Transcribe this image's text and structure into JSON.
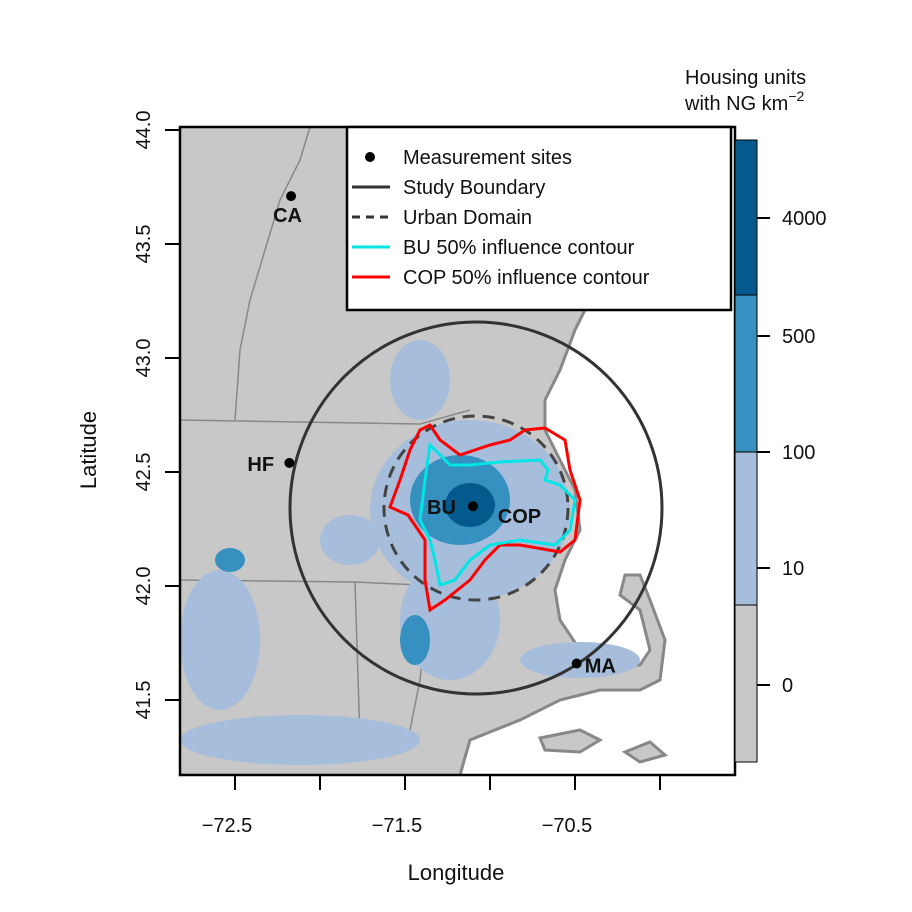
{
  "chart_data": {
    "type": "map",
    "xlabel": "Longitude",
    "ylabel": "Latitude",
    "xlim": [
      -72.82,
      -69.55
    ],
    "ylim": [
      41.22,
      44.01
    ],
    "x_ticks": [
      {
        "v": -72.5,
        "label": "−72.5"
      },
      {
        "v": -72.0,
        "label": ""
      },
      {
        "v": -71.5,
        "label": "−71.5"
      },
      {
        "v": -71.0,
        "label": ""
      },
      {
        "v": -70.5,
        "label": "−70.5"
      },
      {
        "v": -70.0,
        "label": ""
      }
    ],
    "y_ticks": [
      {
        "v": 44.0,
        "label": "44.0"
      },
      {
        "v": 43.5,
        "label": "43.5"
      },
      {
        "v": 43.0,
        "label": "43.0"
      },
      {
        "v": 42.5,
        "label": "42.5"
      },
      {
        "v": 42.0,
        "label": "42.0"
      },
      {
        "v": 41.5,
        "label": "41.5"
      }
    ],
    "sites": [
      {
        "name": "CA",
        "lon": -72.17,
        "lat": 43.71
      },
      {
        "name": "HF",
        "lon": -72.18,
        "lat": 42.54
      },
      {
        "name": "BU",
        "lon": -71.1,
        "lat": 42.35
      },
      {
        "name": "COP",
        "lon": -71.06,
        "lat": 42.35
      },
      {
        "name": "MA",
        "lon": -70.49,
        "lat": 41.66
      }
    ],
    "legend": [
      {
        "label": "Measurement sites",
        "kind": "point",
        "color": "#000000"
      },
      {
        "label": "Study Boundary",
        "kind": "solid",
        "color": "#333333"
      },
      {
        "label": "Urban Domain",
        "kind": "dashed",
        "color": "#333333"
      },
      {
        "label": "BU 50% influence contour",
        "kind": "solid",
        "color": "#00e5e5"
      },
      {
        "label": "COP 50% influence contour",
        "kind": "solid",
        "color": "#ff0000"
      }
    ],
    "colorbar": {
      "title_line1": "Housing units",
      "title_line2": "with NG km",
      "title_sup": "−2",
      "levels": [
        {
          "label": "0",
          "color": "#c8c8c8"
        },
        {
          "label": "10",
          "color": "#a6bddb"
        },
        {
          "label": "100",
          "color": "#3690c0"
        },
        {
          "label": "500",
          "color": "#045a8d"
        },
        {
          "label": "4000",
          "color": ""
        }
      ]
    }
  }
}
